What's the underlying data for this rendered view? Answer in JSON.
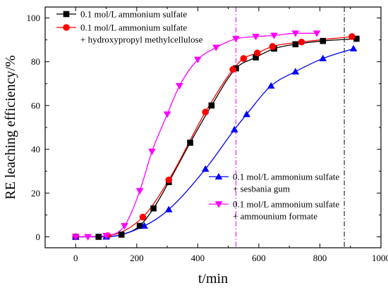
{
  "chart_data": {
    "type": "line",
    "title": "",
    "xlabel": "t/min",
    "ylabel": "RE leaching efficiency/%",
    "xlim": [
      -100,
      1000
    ],
    "ylim": [
      -5,
      105
    ],
    "xticks": [
      0,
      200,
      400,
      600,
      800,
      1000
    ],
    "yticks": [
      0,
      20,
      40,
      60,
      80,
      100
    ],
    "grid": false,
    "vlines": [
      {
        "x": 525,
        "style": "dash-dot",
        "color": "#ee00ee"
      },
      {
        "x": 880,
        "style": "dash-dot",
        "color": "#000000"
      }
    ],
    "series": [
      {
        "name": [
          "0.1 mol/L ammonium sulfate"
        ],
        "color": "#000000",
        "marker": "square",
        "x": [
          0,
          75,
          150,
          210,
          255,
          305,
          375,
          445,
          525,
          590,
          650,
          720,
          810,
          920
        ],
        "y": [
          0,
          0,
          1,
          5,
          13,
          25,
          43,
          60,
          77,
          82,
          86,
          88,
          89.5,
          90.5
        ]
      },
      {
        "name": [
          "0.1 mol/L ammonium sulfate",
          "+ hydroxypropyl methylcellulose"
        ],
        "color": "#ff0000",
        "marker": "circle",
        "x": [
          0,
          105,
          220,
          305,
          425,
          515,
          550,
          595,
          645,
          740,
          905
        ],
        "y": [
          0,
          0.5,
          9,
          26,
          57,
          76.5,
          81.5,
          84,
          87,
          89,
          91.5
        ]
      },
      {
        "name": [
          "0.1 mol/L ammonium sulfate",
          "+ sesbania gum"
        ],
        "color": "#0000ff",
        "marker": "triangle-up",
        "x": [
          0,
          100,
          225,
          305,
          425,
          520,
          560,
          640,
          720,
          810,
          910
        ],
        "y": [
          0,
          0,
          5,
          12.5,
          31,
          49,
          56,
          69,
          75.5,
          81.5,
          86
        ]
      },
      {
        "name": [
          "0.1 mol/L ammonium sulfate",
          "+ ammounium formate"
        ],
        "color": "#ff00ff",
        "marker": "triangle-down",
        "x": [
          0,
          40,
          100,
          160,
          210,
          250,
          300,
          340,
          400,
          460,
          525,
          590,
          650,
          720,
          790
        ],
        "y": [
          0,
          0,
          0.5,
          5,
          21,
          39,
          56,
          69,
          81,
          86.5,
          90.5,
          91.5,
          92,
          93,
          93
        ]
      }
    ]
  }
}
